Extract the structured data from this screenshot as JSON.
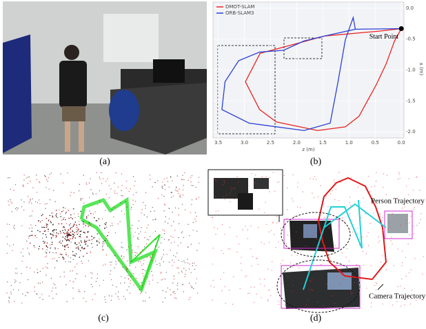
{
  "labels": [
    "(a)",
    "(b)",
    "(c)",
    "(d)"
  ],
  "chart_b": {
    "type": "line",
    "x_label": "z (m)",
    "y_label": "x (m)",
    "xlim": [
      3.6,
      -0.05
    ],
    "ylim": [
      0.1,
      -2.1
    ],
    "xticks": [
      3.5,
      {
        "value": 3,
        "label": "3.0"
      },
      2.5,
      {
        "value": 2,
        "label": "2.0"
      },
      1.5,
      {
        "value": 1,
        "label": "1.0"
      },
      0.5,
      {
        "value": 0,
        "label": "0.0"
      }
    ],
    "yticks": [
      {
        "value": 0,
        "label": "0.0"
      },
      -0.5,
      {
        "value": -1,
        "label": "-1.0"
      },
      -1.5,
      {
        "value": -2,
        "label": "-2.0"
      }
    ],
    "legend": "upper left",
    "series": [
      {
        "name": "DMOT-SLAM",
        "color": "#e8231f",
        "x": [
          0.0,
          0.42,
          1.47,
          2.12,
          2.7,
          2.98,
          2.71,
          2.39,
          1.6,
          1.07,
          0.81,
          0.48,
          0.29,
          0.13,
          0.0
        ],
        "values": [
          -0.33,
          -0.37,
          -0.45,
          -0.6,
          -0.73,
          -1.19,
          -1.64,
          -1.84,
          -1.98,
          -1.92,
          -1.75,
          -1.24,
          -0.9,
          -0.53,
          -0.33
        ]
      },
      {
        "name": "ORB-SLAM3",
        "color": "#2b3fd6",
        "x": [
          0.0,
          0.88,
          0.92,
          1.07,
          1.21,
          1.36,
          1.86,
          2.91,
          3.43,
          3.37,
          3.11,
          2.71,
          2.25,
          1.86,
          1.47,
          0.88
        ],
        "values": [
          -0.33,
          -0.34,
          -0.15,
          -0.51,
          -1.19,
          -1.86,
          -1.98,
          -1.86,
          -1.64,
          -1.19,
          -0.85,
          -0.71,
          -0.68,
          -0.53,
          -0.45,
          -0.34
        ]
      }
    ],
    "annotation": {
      "text": "Start Point",
      "x": 0.0,
      "y": -0.33
    }
  },
  "panel_d": {
    "person_label": "Person Trajectory",
    "camera_label": "Camera Trajectory"
  }
}
